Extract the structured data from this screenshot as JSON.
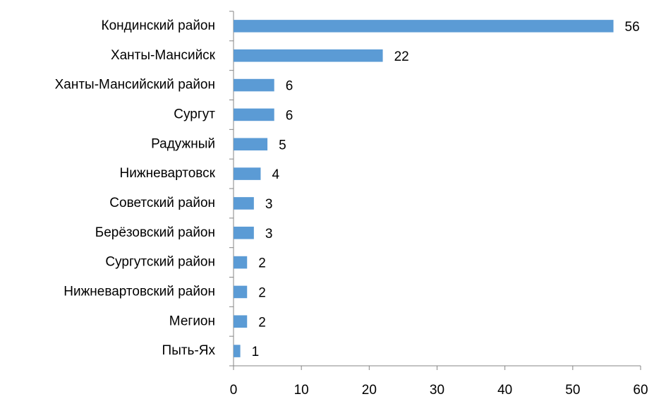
{
  "chart_data": {
    "type": "bar",
    "orientation": "horizontal",
    "categories": [
      "Кондинский район",
      "Ханты-Мансийск",
      "Ханты-Мансийский район",
      "Сургут",
      "Радужный",
      "Нижневартовск",
      "Советский район",
      "Берёзовский район",
      "Сургутский район",
      "Нижневартовский район",
      "Мегион",
      "Пыть-Ях"
    ],
    "values": [
      56,
      22,
      6,
      6,
      5,
      4,
      3,
      3,
      2,
      2,
      2,
      1
    ],
    "color": "#5b9bd5",
    "xlim": [
      0,
      60
    ],
    "xticks": [
      0,
      10,
      20,
      30,
      40,
      50,
      60
    ],
    "grid": false
  }
}
